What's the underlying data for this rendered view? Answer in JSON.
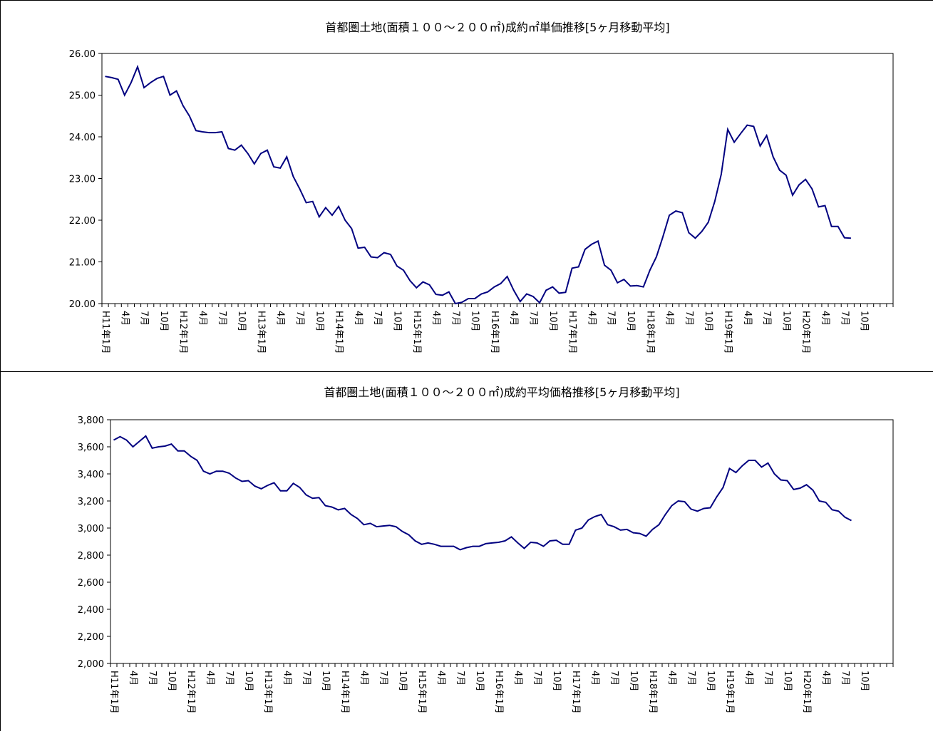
{
  "chart_data": [
    {
      "type": "line",
      "title": "首都圏土地(面積１００～２００㎡)成約㎡単価推移[5ヶ月移動平均]",
      "categories": [
        "H11年1月",
        null,
        null,
        "4月",
        null,
        null,
        "7月",
        null,
        null,
        "10月",
        null,
        null,
        "H12年1月",
        null,
        null,
        "4月",
        null,
        null,
        "7月",
        null,
        null,
        "10月",
        null,
        null,
        "H13年1月",
        null,
        null,
        "4月",
        null,
        null,
        "7月",
        null,
        null,
        "10月",
        null,
        null,
        "H14年1月",
        null,
        null,
        "4月",
        null,
        null,
        "7月",
        null,
        null,
        "10月",
        null,
        null,
        "H15年1月",
        null,
        null,
        "4月",
        null,
        null,
        "7月",
        null,
        null,
        "10月",
        null,
        null,
        "H16年1月",
        null,
        null,
        "4月",
        null,
        null,
        "7月",
        null,
        null,
        "10月",
        null,
        null,
        "H17年1月",
        null,
        null,
        "4月",
        null,
        null,
        "7月",
        null,
        null,
        "10月",
        null,
        null,
        "H18年1月",
        null,
        null,
        "4月",
        null,
        null,
        "7月",
        null,
        null,
        "10月",
        null,
        null,
        "H19年1月",
        null,
        null,
        "4月",
        null,
        null,
        "7月",
        null,
        null,
        "10月",
        null,
        null,
        "H20年1月",
        null,
        null,
        "4月",
        null,
        null,
        "7月",
        null,
        null,
        "10月",
        null,
        null,
        null,
        null
      ],
      "values": [
        25.45,
        25.42,
        25.38,
        25.0,
        25.3,
        25.68,
        25.18,
        25.3,
        25.4,
        25.45,
        25.0,
        25.1,
        24.75,
        24.5,
        24.15,
        24.12,
        24.1,
        24.1,
        24.12,
        23.72,
        23.68,
        23.8,
        23.6,
        23.35,
        23.6,
        23.68,
        23.28,
        23.25,
        23.52,
        23.05,
        22.75,
        22.42,
        22.45,
        22.08,
        22.3,
        22.12,
        22.33,
        22.0,
        21.8,
        21.33,
        21.35,
        21.12,
        21.1,
        21.22,
        21.18,
        20.9,
        20.8,
        20.55,
        20.38,
        20.52,
        20.45,
        20.22,
        20.2,
        20.28,
        20.0,
        20.03,
        20.12,
        20.12,
        20.23,
        20.28,
        20.4,
        20.48,
        20.65,
        20.32,
        20.05,
        20.23,
        20.17,
        20.02,
        20.32,
        20.4,
        20.25,
        20.27,
        20.85,
        20.88,
        21.3,
        21.42,
        21.5,
        20.92,
        20.8,
        20.5,
        20.58,
        20.42,
        20.43,
        20.4,
        20.8,
        21.12,
        21.6,
        22.12,
        22.22,
        22.18,
        21.7,
        21.57,
        21.73,
        21.95,
        22.45,
        23.1,
        24.18,
        23.87,
        24.08,
        24.28,
        24.25,
        23.78,
        24.03,
        23.52,
        23.2,
        23.08,
        22.6,
        22.85,
        22.98,
        22.75,
        22.32,
        22.35,
        21.85,
        21.85,
        21.58,
        21.57,
        null,
        null,
        null,
        null,
        null,
        null
      ],
      "color": "#000080",
      "ylim": [
        20,
        26
      ],
      "yticks": [
        {
          "value": 20,
          "label": "20.00"
        },
        {
          "value": 21,
          "label": "21.00"
        },
        {
          "value": 22,
          "label": "22.00"
        },
        {
          "value": 23,
          "label": "23.00"
        },
        {
          "value": 24,
          "label": "24.00"
        },
        {
          "value": 25,
          "label": "25.00"
        },
        {
          "value": 26,
          "label": "26.00"
        }
      ]
    },
    {
      "type": "line",
      "title": "首都圏土地(面積１００～２００㎡)成約平均価格推移[5ヶ月移動平均]",
      "categories": [
        "H11年1月",
        null,
        null,
        "4月",
        null,
        null,
        "7月",
        null,
        null,
        "10月",
        null,
        null,
        "H12年1月",
        null,
        null,
        "4月",
        null,
        null,
        "7月",
        null,
        null,
        "10月",
        null,
        null,
        "H13年1月",
        null,
        null,
        "4月",
        null,
        null,
        "7月",
        null,
        null,
        "10月",
        null,
        null,
        "H14年1月",
        null,
        null,
        "4月",
        null,
        null,
        "7月",
        null,
        null,
        "10月",
        null,
        null,
        "H15年1月",
        null,
        null,
        "4月",
        null,
        null,
        "7月",
        null,
        null,
        "10月",
        null,
        null,
        "H16年1月",
        null,
        null,
        "4月",
        null,
        null,
        "7月",
        null,
        null,
        "10月",
        null,
        null,
        "H17年1月",
        null,
        null,
        "4月",
        null,
        null,
        "7月",
        null,
        null,
        "10月",
        null,
        null,
        "H18年1月",
        null,
        null,
        "4月",
        null,
        null,
        "7月",
        null,
        null,
        "10月",
        null,
        null,
        "H19年1月",
        null,
        null,
        "4月",
        null,
        null,
        "7月",
        null,
        null,
        "10月",
        null,
        null,
        "H20年1月",
        null,
        null,
        "4月",
        null,
        null,
        "7月",
        null,
        null,
        "10月",
        null,
        null,
        null,
        null
      ],
      "values": [
        3650,
        3675,
        3650,
        3600,
        3640,
        3680,
        3590,
        3600,
        3605,
        3620,
        3570,
        3570,
        3530,
        3500,
        3420,
        3400,
        3420,
        3420,
        3405,
        3370,
        3345,
        3350,
        3310,
        3290,
        3315,
        3335,
        3275,
        3275,
        3330,
        3300,
        3245,
        3220,
        3225,
        3165,
        3155,
        3135,
        3145,
        3100,
        3070,
        3025,
        3035,
        3010,
        3015,
        3020,
        3010,
        2975,
        2950,
        2905,
        2880,
        2890,
        2880,
        2865,
        2865,
        2865,
        2840,
        2855,
        2865,
        2865,
        2885,
        2890,
        2895,
        2905,
        2935,
        2890,
        2850,
        2895,
        2890,
        2865,
        2905,
        2910,
        2880,
        2880,
        2985,
        3000,
        3060,
        3085,
        3100,
        3025,
        3010,
        2985,
        2990,
        2965,
        2960,
        2940,
        2990,
        3025,
        3100,
        3165,
        3200,
        3195,
        3140,
        3125,
        3145,
        3150,
        3230,
        3300,
        3440,
        3410,
        3460,
        3500,
        3500,
        3450,
        3480,
        3400,
        3355,
        3350,
        3285,
        3295,
        3320,
        3280,
        3200,
        3190,
        3135,
        3125,
        3080,
        3055,
        null,
        null,
        null,
        null,
        null,
        null
      ],
      "color": "#000080",
      "ylim": [
        2000,
        3800
      ],
      "yticks": [
        {
          "value": 2000,
          "label": "2,000"
        },
        {
          "value": 2200,
          "label": "2,200"
        },
        {
          "value": 2400,
          "label": "2,400"
        },
        {
          "value": 2600,
          "label": "2,600"
        },
        {
          "value": 2800,
          "label": "2,800"
        },
        {
          "value": 3000,
          "label": "3,000"
        },
        {
          "value": 3200,
          "label": "3,200"
        },
        {
          "value": 3400,
          "label": "3,400"
        },
        {
          "value": 3600,
          "label": "3,600"
        },
        {
          "value": 3800,
          "label": "3,800"
        }
      ]
    }
  ]
}
